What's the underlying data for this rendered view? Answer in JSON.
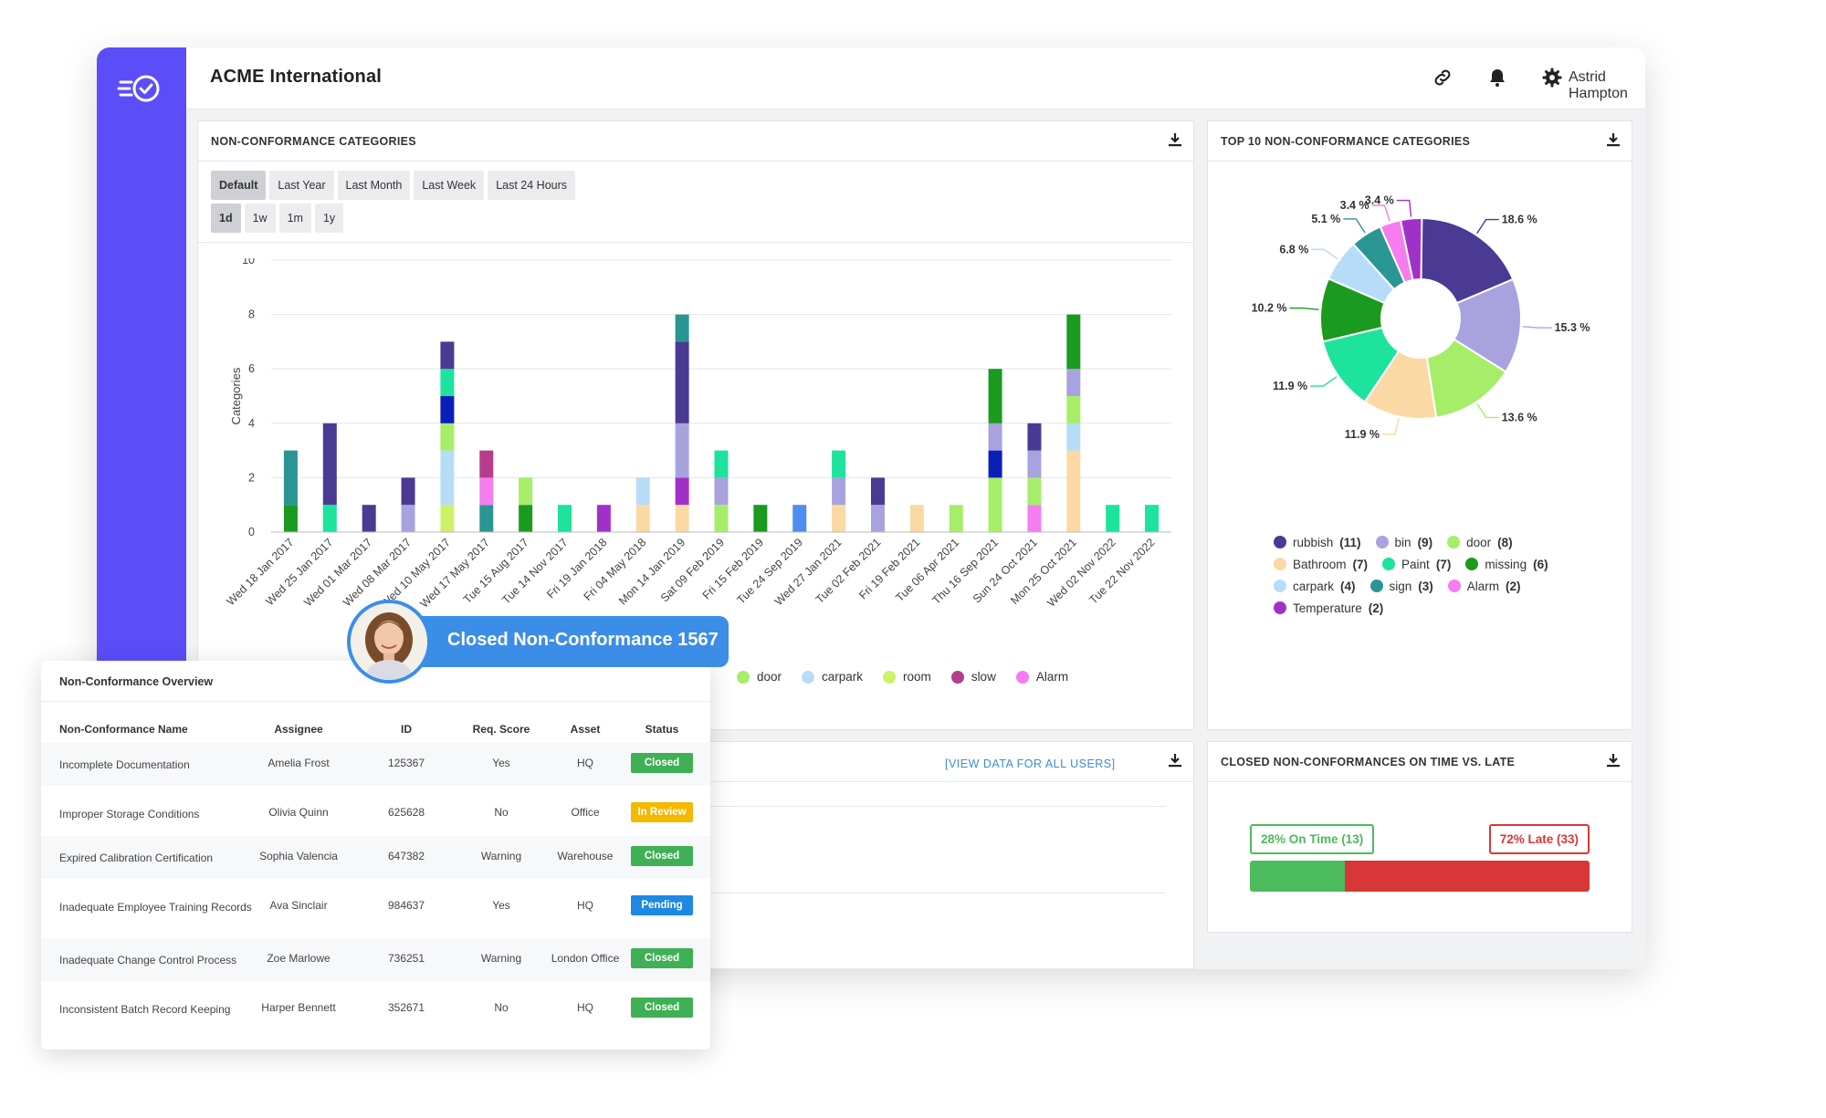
{
  "app": {
    "title": "ACME International",
    "user_name": "Astrid Hampton",
    "icons": [
      "logo-check-icon",
      "link-icon",
      "bell-icon",
      "gear-icon",
      "chevron-down-icon",
      "download-icon"
    ]
  },
  "colors": {
    "sidebar": "#5b4ef8",
    "rubbish": "#4b3a94",
    "bin": "#a8a3de",
    "door": "#a6ee6a",
    "bathroom": "#fbd9a4",
    "paint": "#1de39c",
    "missing": "#1a9a1e",
    "carpark": "#b7dcf8",
    "sign": "#2a9694",
    "alarm": "#f57df0",
    "temperature": "#a130c9",
    "room": "#cdf26a",
    "slow": "#b63d8c",
    "blue_extra": "#0b1fb8",
    "blue_light": "#4f8ef0",
    "on_time": "#4cbb5b",
    "late": "#d83737",
    "link": "#3d8bd8"
  },
  "nc_categories": {
    "title": "NON-CONFORMANCE CATEGORIES",
    "filters": [
      "Default",
      "Last Year",
      "Last Month",
      "Last Week",
      "Last 24 Hours"
    ],
    "active_filter": "Default",
    "ranges": [
      "1d",
      "1w",
      "1m",
      "1y"
    ],
    "active_range": "1d",
    "legend": [
      {
        "name": "door",
        "color_key": "door"
      },
      {
        "name": "carpark",
        "color_key": "carpark"
      },
      {
        "name": "room",
        "color_key": "room"
      },
      {
        "name": "slow",
        "color_key": "slow"
      },
      {
        "name": "Alarm",
        "color_key": "alarm"
      }
    ]
  },
  "chart_data": [
    {
      "type": "bar",
      "stacked": true,
      "ylabel": "Categories",
      "ylim": [
        0,
        10
      ],
      "yticks": [
        0,
        2,
        4,
        6,
        8,
        10
      ],
      "grid": true,
      "categories": [
        "Wed 18 Jan 2017",
        "Wed 25 Jan 2017",
        "Wed 01 Mar 2017",
        "Wed 08 Mar 2017",
        "Wed 10 May 2017",
        "Wed 17 May 2017",
        "Tue 15 Aug 2017",
        "Tue 14 Nov 2017",
        "Fri 19 Jan 2018",
        "Fri 04 May 2018",
        "Mon 14 Jan 2019",
        "Sat 09 Feb 2019",
        "Fri 15 Feb 2019",
        "Tue 24 Sep 2019",
        "Wed 27 Jan 2021",
        "Tue 02 Feb 2021",
        "Fri 19 Feb 2021",
        "Tue 06 Apr 2021",
        "Thu 16 Sep 2021",
        "Sun 24 Oct 2021",
        "Mon 25 Oct 2021",
        "Wed 02 Nov 2022",
        "Tue 22 Nov 2022"
      ],
      "stacks": [
        [
          [
            "missing",
            1
          ],
          [
            "sign",
            2
          ]
        ],
        [
          [
            "paint",
            1
          ],
          [
            "rubbish",
            3
          ]
        ],
        [
          [
            "rubbish",
            1
          ]
        ],
        [
          [
            "bin",
            1
          ],
          [
            "rubbish",
            1
          ]
        ],
        [
          [
            "room",
            1
          ],
          [
            "carpark",
            2
          ],
          [
            "door",
            1
          ],
          [
            "blue_extra",
            1
          ],
          [
            "paint",
            1
          ],
          [
            "rubbish",
            1
          ]
        ],
        [
          [
            "sign",
            1
          ],
          [
            "alarm",
            1
          ],
          [
            "slow",
            1
          ]
        ],
        [
          [
            "missing",
            1
          ],
          [
            "door",
            1
          ]
        ],
        [
          [
            "paint",
            1
          ]
        ],
        [
          [
            "temperature",
            1
          ]
        ],
        [
          [
            "bathroom",
            1
          ],
          [
            "carpark",
            1
          ]
        ],
        [
          [
            "bathroom",
            1
          ],
          [
            "temperature",
            1
          ],
          [
            "bin",
            2
          ],
          [
            "rubbish",
            3
          ],
          [
            "sign",
            1
          ]
        ],
        [
          [
            "door",
            1
          ],
          [
            "bin",
            1
          ],
          [
            "paint",
            1
          ]
        ],
        [
          [
            "missing",
            1
          ]
        ],
        [
          [
            "blue_light",
            1
          ]
        ],
        [
          [
            "bathroom",
            1
          ],
          [
            "bin",
            1
          ],
          [
            "paint",
            1
          ]
        ],
        [
          [
            "bin",
            1
          ],
          [
            "rubbish",
            1
          ]
        ],
        [
          [
            "bathroom",
            1
          ]
        ],
        [
          [
            "door",
            1
          ]
        ],
        [
          [
            "door",
            2
          ],
          [
            "blue_extra",
            1
          ],
          [
            "bin",
            1
          ],
          [
            "missing",
            2
          ]
        ],
        [
          [
            "alarm",
            1
          ],
          [
            "door",
            1
          ],
          [
            "bin",
            1
          ],
          [
            "rubbish",
            1
          ]
        ],
        [
          [
            "bathroom",
            3
          ],
          [
            "carpark",
            1
          ],
          [
            "door",
            1
          ],
          [
            "bin",
            1
          ],
          [
            "missing",
            2
          ]
        ],
        [
          [
            "paint",
            1
          ]
        ],
        [
          [
            "paint",
            1
          ]
        ]
      ]
    },
    {
      "type": "pie",
      "donut": true,
      "title": "TOP 10 NON-CONFORMANCE CATEGORIES",
      "slices": [
        {
          "name": "rubbish",
          "count": 11,
          "percent": 18.6,
          "color_key": "rubbish"
        },
        {
          "name": "bin",
          "count": 9,
          "percent": 15.3,
          "color_key": "bin"
        },
        {
          "name": "door",
          "count": 8,
          "percent": 13.6,
          "color_key": "door"
        },
        {
          "name": "Bathroom",
          "count": 7,
          "percent": 11.9,
          "color_key": "bathroom"
        },
        {
          "name": "Paint",
          "count": 7,
          "percent": 11.9,
          "color_key": "paint"
        },
        {
          "name": "missing",
          "count": 6,
          "percent": 10.2,
          "color_key": "missing"
        },
        {
          "name": "carpark",
          "count": 4,
          "percent": 6.8,
          "color_key": "carpark"
        },
        {
          "name": "sign",
          "count": 3,
          "percent": 5.1,
          "color_key": "sign"
        },
        {
          "name": "Alarm",
          "count": 2,
          "percent": 3.4,
          "color_key": "alarm"
        },
        {
          "name": "Temperature",
          "count": 2,
          "percent": 3.4,
          "color_key": "temperature"
        }
      ]
    },
    {
      "type": "bar",
      "stacked": true,
      "orientation": "horizontal",
      "title": "CLOSED NON-CONFORMANCES ON TIME VS. LATE",
      "series": [
        {
          "name": "On Time",
          "percent": 28,
          "count": 13,
          "label": "28% On Time (13)",
          "color_key": "on_time"
        },
        {
          "name": "Late",
          "percent": 72,
          "count": 33,
          "label": "72% Late (33)",
          "color_key": "late"
        }
      ]
    }
  ],
  "users_card": {
    "view_link": "[VIEW DATA FOR ALL USERS]"
  },
  "notification": {
    "text": "Closed Non-Conformance 1567"
  },
  "overview": {
    "title": "Non-Conformance Overview",
    "columns": [
      "Non-Conformance Name",
      "Assignee",
      "ID",
      "Req. Score",
      "Asset",
      "Status"
    ],
    "rows": [
      {
        "name": "Incomplete Documentation",
        "assignee": "Amelia Frost",
        "id": "125367",
        "score": "Yes",
        "asset": "HQ",
        "status": "Closed"
      },
      {
        "name": "Improper Storage Conditions",
        "assignee": "Olivia Quinn",
        "id": "625628",
        "score": "No",
        "asset": "Office",
        "status": "In Review"
      },
      {
        "name": "Expired Calibration Certification",
        "assignee": "Sophia Valencia",
        "id": "647382",
        "score": "Warning",
        "asset": "Warehouse",
        "status": "Closed"
      },
      {
        "name": "Inadequate Employee Training Records",
        "assignee": "Ava Sinclair",
        "id": "984637",
        "score": "Yes",
        "asset": "HQ",
        "status": "Pending"
      },
      {
        "name": "Inadequate Change Control Process",
        "assignee": "Zoe Marlowe",
        "id": "736251",
        "score": "Warning",
        "asset": "London Office",
        "status": "Closed"
      },
      {
        "name": "Inconsistent Batch Record Keeping",
        "assignee": "Harper Bennett",
        "id": "352671",
        "score": "No",
        "asset": "HQ",
        "status": "Closed"
      }
    ],
    "status_colors": {
      "Closed": "#3fb055",
      "In Review": "#f5b800",
      "Pending": "#1e88e5"
    }
  }
}
